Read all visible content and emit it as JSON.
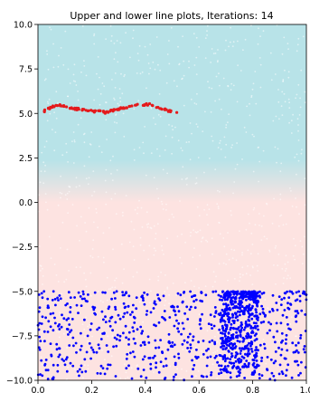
{
  "chart_data": {
    "type": "scatter",
    "title": "Upper and lower line plots, Iterations: 14",
    "xlabel": "",
    "ylabel": "",
    "xlim": [
      0.0,
      1.0
    ],
    "ylim": [
      -10.0,
      10.0
    ],
    "x_ticks": [
      "0.0",
      "0.2",
      "0.4",
      "0.6",
      "0.8",
      "1.0"
    ],
    "y_ticks": [
      "10.0",
      "7.5",
      "5.0",
      "2.5",
      "0.0",
      "−2.5",
      "−5.0",
      "−7.5",
      "−10.0"
    ],
    "grid": false,
    "legend": "none",
    "background_regions": [
      {
        "name": "upper region",
        "color": "#b8e3e8",
        "y_range": [
          1.0,
          10.0
        ]
      },
      {
        "name": "lower region",
        "color": "#fde3e1",
        "y_range": [
          -10.0,
          1.0
        ]
      }
    ],
    "series": [
      {
        "color": "#e41a1c",
        "marker_size": 1.6,
        "segments": [
          {
            "x_range": [
              0.02,
              0.25
            ],
            "y_start": 5.1,
            "peak_x": 0.08,
            "peak_y": 5.45,
            "y_end": 5.1
          },
          {
            "x_range": [
              0.25,
              0.52
            ],
            "y_start": 5.05,
            "peak_x": 0.42,
            "peak_y": 5.5,
            "y_end": 5.1
          }
        ],
        "approx_points": 110
      },
      {
        "color": "#0000ff",
        "marker_size": 1.4,
        "y_range": [
          -10.0,
          -5.0
        ],
        "dense_cluster_x": [
          0.68,
          0.82
        ],
        "approx_points": 1100
      }
    ]
  }
}
